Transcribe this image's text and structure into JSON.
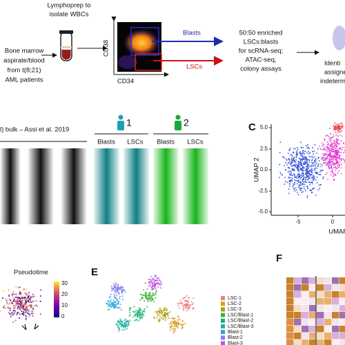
{
  "panel_a": {
    "lymphoprep": [
      "Lymphoprep to",
      "isolate WBCs"
    ],
    "source": [
      "Bone marrow",
      "aspirate/blood",
      "from t(8;21)",
      "AML patients"
    ],
    "flow_y_axis": "CD38",
    "flow_x_axis": "CD34",
    "gate_blasts": "Blasts",
    "gate_lscs": "LSCs",
    "enrichment": [
      "50:50 enriched",
      "LSCs:blasts",
      "for scRNA-seq;",
      "ATAC-seq,",
      "colony assays"
    ],
    "identity": [
      "Identi",
      "assigne",
      "indeterm"
    ]
  },
  "panel_b": {
    "bulk_label": "l) bulk – Assi et al. 2019",
    "patients": [
      {
        "number": "1",
        "columns": [
          "Blasts",
          "LSCs"
        ]
      },
      {
        "number": "2",
        "columns": [
          "Blasts",
          "LSCs"
        ]
      }
    ]
  },
  "panel_c": {
    "label": "C",
    "y_axis": "UMAP 2",
    "x_axis": "UMAP",
    "yticks": [
      "5.0",
      "2.5",
      "0.0",
      "-2.5",
      "-5.0"
    ],
    "xticks": [
      "-5",
      "0"
    ]
  },
  "panel_d": {
    "title": "Pseudotime",
    "colorbar_ticks": [
      "30",
      "20",
      "10",
      "0"
    ]
  },
  "panel_e": {
    "label": "E",
    "legend": [
      "LSC-1",
      "LSC-2",
      "LSC-3",
      "LSC/Blast-1",
      "LSC/Blast-2",
      "LSC/Blast-3",
      "Blast-1",
      "Blast-2",
      "Blast-3"
    ]
  },
  "panel_f": {
    "label": "F"
  }
}
